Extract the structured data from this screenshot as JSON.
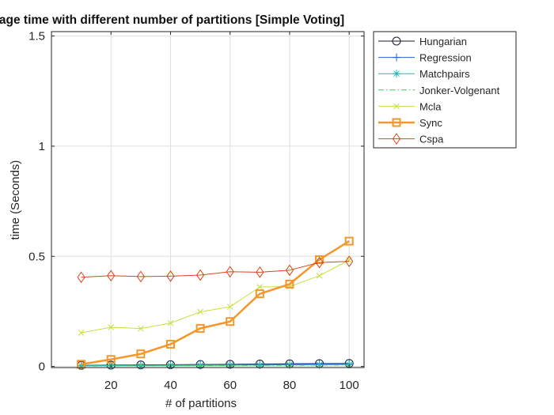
{
  "figure": {
    "title": "Average time  with different number of partitions [Simple Voting]"
  },
  "chart_data": {
    "type": "line",
    "title": "Average time  with different number of partitions [Simple Voting]",
    "xlabel": "# of partitions",
    "ylabel": "time (Seconds)",
    "xlim": [
      0,
      105
    ],
    "ylim": [
      -0.005,
      1.52
    ],
    "xticks": [
      20,
      40,
      60,
      80,
      100
    ],
    "xtick_labels": [
      "20",
      "40",
      "60",
      "80",
      "100"
    ],
    "yticks": [
      0,
      0.5,
      1,
      1.5
    ],
    "ytick_labels": [
      "0",
      "0.5",
      "1",
      "1.5"
    ],
    "grid": true,
    "legend_position": "outside-right-top",
    "x": [
      10,
      20,
      30,
      40,
      50,
      60,
      70,
      80,
      90,
      100
    ],
    "series": [
      {
        "name": "Hungarian",
        "color": "#1a1a33",
        "marker": "circle",
        "line": "solid",
        "width": 1,
        "values": [
          0.005,
          0.006,
          0.007,
          0.008,
          0.009,
          0.01,
          0.011,
          0.012,
          0.013,
          0.014
        ]
      },
      {
        "name": "Regression",
        "color": "#1f5fd6",
        "marker": "plus",
        "line": "solid",
        "width": 1,
        "values": [
          0.004,
          0.005,
          0.006,
          0.007,
          0.008,
          0.008,
          0.009,
          0.01,
          0.011,
          0.012
        ]
      },
      {
        "name": "Matchpairs",
        "color": "#22b8b0",
        "marker": "asterisk",
        "line": "solid",
        "width": 1,
        "values": [
          0.003,
          0.004,
          0.004,
          0.005,
          0.005,
          0.006,
          0.006,
          0.007,
          0.007,
          0.008
        ]
      },
      {
        "name": "Jonker-Volgenant",
        "color": "#44cc66",
        "marker": "none",
        "line": "dashdot",
        "width": 1,
        "values": [
          0.002,
          0.003,
          0.003,
          0.004,
          0.004,
          0.004,
          0.005,
          0.005,
          0.006,
          0.006
        ]
      },
      {
        "name": "Mcla",
        "color": "#c6e03a",
        "marker": "x",
        "line": "solid",
        "width": 1,
        "values": [
          0.153,
          0.178,
          0.172,
          0.197,
          0.248,
          0.271,
          0.361,
          0.363,
          0.412,
          0.483
        ]
      },
      {
        "name": "Sync",
        "color": "#f5962a",
        "marker": "square",
        "line": "solid",
        "width": 2.5,
        "values": [
          0.01,
          0.032,
          0.057,
          0.101,
          0.173,
          0.204,
          0.33,
          0.374,
          0.485,
          0.569
        ]
      },
      {
        "name": "Cspa",
        "color": "#d9461a",
        "marker": "diamond",
        "line": "solid",
        "width": 1,
        "values": [
          0.405,
          0.412,
          0.408,
          0.41,
          0.415,
          0.43,
          0.428,
          0.437,
          0.472,
          0.477
        ]
      }
    ]
  }
}
